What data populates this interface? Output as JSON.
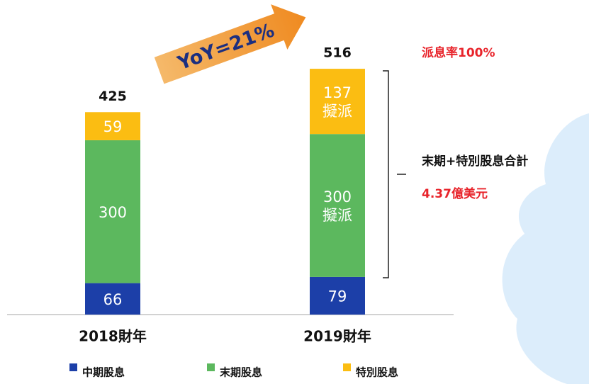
{
  "chart_data": {
    "type": "stacked_bar",
    "categories": [
      "2018財年",
      "2019財年"
    ],
    "series": [
      {
        "name": "中期股息",
        "color": "#1c3fa8",
        "values": [
          66,
          79
        ]
      },
      {
        "name": "末期股息",
        "color": "#5cb85e",
        "values": [
          300,
          300
        ],
        "value_labels": [
          "300",
          "300\n擬派"
        ]
      },
      {
        "name": "特別股息",
        "color": "#fbbd12",
        "values": [
          59,
          137
        ],
        "value_labels": [
          "59",
          "137\n擬派"
        ]
      }
    ],
    "totals": [
      425,
      516
    ],
    "ylim": [
      0,
      650
    ],
    "annotations": {
      "yoy": "YoY=21%",
      "payout": "派息率100%",
      "sum_label": "末期+特別股息合計",
      "sum_value": "4.37億美元"
    },
    "legend": "bottom"
  }
}
